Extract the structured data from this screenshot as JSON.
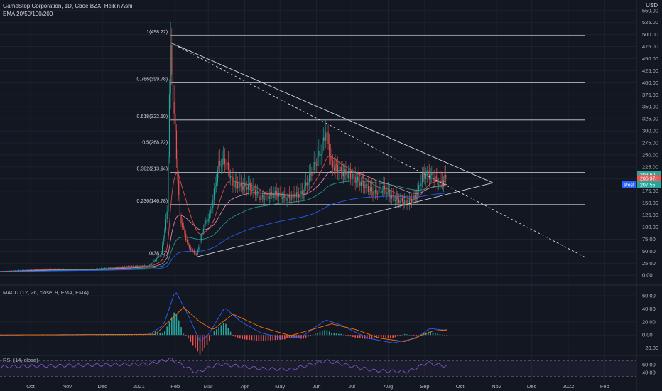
{
  "header": {
    "title": "GameStop Corporation, 1D, Cboe BZX, Heikin Ashi",
    "indicator": "EMA 20/50/100/200",
    "currency": "USD"
  },
  "colors": {
    "bg": "#131722",
    "grid": "#1e222d",
    "up": "#26a69a",
    "down": "#ef5350",
    "fib": "#d1d4dc",
    "ema20": "#ef5350",
    "ema50": "#f48fb1",
    "ema100": "#26a69a",
    "ema200": "#2962ff",
    "macd": "#2962ff",
    "signal": "#ff6d00",
    "rsi": "#7e57c2"
  },
  "chart_data": [
    {
      "type": "candlestick",
      "name_label": "GameStop Corporation, 1D, Cboe BZX, Heikin Ashi",
      "y_ticks": [
        0,
        25,
        50,
        75,
        100,
        125,
        150,
        175,
        200,
        225,
        250,
        275,
        300,
        325,
        350,
        375,
        400,
        425,
        450,
        475,
        500,
        525,
        550
      ],
      "y_tick_labels": [
        "0.00",
        "25.00",
        "50.00",
        "75.00",
        "100.00",
        "125.00",
        "150.00",
        "175.00",
        "200.00",
        "225.00",
        "250.00",
        "275.00",
        "300.00",
        "325.00",
        "350.00",
        "375.00",
        "400.00",
        "425.00",
        "450.00",
        "475.00",
        "500.00",
        "525.00",
        "550.00"
      ],
      "ylim": [
        -10,
        560
      ],
      "x_axis": {
        "start": "2020-09-05",
        "end": "2022-02-28",
        "ticks": [
          {
            "date": "2020-10-01",
            "label": "Oct"
          },
          {
            "date": "2020-11-01",
            "label": "Nov"
          },
          {
            "date": "2020-12-01",
            "label": "Dec"
          },
          {
            "date": "2021-01-01",
            "label": "2021"
          },
          {
            "date": "2021-02-01",
            "label": "Feb"
          },
          {
            "date": "2021-03-01",
            "label": "Mar"
          },
          {
            "date": "2021-04-01",
            "label": "Apr"
          },
          {
            "date": "2021-05-01",
            "label": "May"
          },
          {
            "date": "2021-06-01",
            "label": "Jun"
          },
          {
            "date": "2021-07-01",
            "label": "Jul"
          },
          {
            "date": "2021-08-01",
            "label": "Aug"
          },
          {
            "date": "2021-09-01",
            "label": "Sep"
          },
          {
            "date": "2021-10-01",
            "label": "Oct"
          },
          {
            "date": "2021-11-01",
            "label": "Nov"
          },
          {
            "date": "2021-12-01",
            "label": "Dec"
          },
          {
            "date": "2022-01-01",
            "label": "2022"
          },
          {
            "date": "2022-02-01",
            "label": "Feb"
          }
        ]
      },
      "price_path": [
        {
          "date": "2020-09-05",
          "value": 8
        },
        {
          "date": "2020-10-15",
          "value": 13
        },
        {
          "date": "2020-11-20",
          "value": 12
        },
        {
          "date": "2020-12-20",
          "value": 18
        },
        {
          "date": "2021-01-10",
          "value": 20
        },
        {
          "date": "2021-01-20",
          "value": 45
        },
        {
          "date": "2021-01-25",
          "value": 130
        },
        {
          "date": "2021-01-27",
          "value": 380
        },
        {
          "date": "2021-01-28",
          "value": 460
        },
        {
          "date": "2021-02-01",
          "value": 290
        },
        {
          "date": "2021-02-05",
          "value": 120
        },
        {
          "date": "2021-02-12",
          "value": 60
        },
        {
          "date": "2021-02-19",
          "value": 42
        },
        {
          "date": "2021-02-25",
          "value": 100
        },
        {
          "date": "2021-03-03",
          "value": 130
        },
        {
          "date": "2021-03-10",
          "value": 230
        },
        {
          "date": "2021-03-15",
          "value": 240
        },
        {
          "date": "2021-03-22",
          "value": 190
        },
        {
          "date": "2021-03-29",
          "value": 185
        },
        {
          "date": "2021-04-05",
          "value": 185
        },
        {
          "date": "2021-04-15",
          "value": 160
        },
        {
          "date": "2021-04-28",
          "value": 170
        },
        {
          "date": "2021-05-05",
          "value": 160
        },
        {
          "date": "2021-05-20",
          "value": 170
        },
        {
          "date": "2021-05-28",
          "value": 215
        },
        {
          "date": "2021-06-05",
          "value": 260
        },
        {
          "date": "2021-06-09",
          "value": 300
        },
        {
          "date": "2021-06-14",
          "value": 230
        },
        {
          "date": "2021-06-22",
          "value": 215
        },
        {
          "date": "2021-07-01",
          "value": 205
        },
        {
          "date": "2021-07-10",
          "value": 190
        },
        {
          "date": "2021-07-20",
          "value": 170
        },
        {
          "date": "2021-07-28",
          "value": 180
        },
        {
          "date": "2021-08-05",
          "value": 160
        },
        {
          "date": "2021-08-18",
          "value": 150
        },
        {
          "date": "2021-08-25",
          "value": 165
        },
        {
          "date": "2021-08-30",
          "value": 205
        },
        {
          "date": "2021-09-03",
          "value": 210
        },
        {
          "date": "2021-09-08",
          "value": 205
        },
        {
          "date": "2021-09-14",
          "value": 190
        },
        {
          "date": "2021-09-20",
          "value": 206
        }
      ],
      "fibonacci": [
        {
          "level": "1",
          "price": 498.22,
          "label": "1(498.22)"
        },
        {
          "level": "0.786",
          "price": 399.78,
          "label": "0.786(399.78)"
        },
        {
          "level": "0.618",
          "price": 322.5,
          "label": "0.618(322.50)"
        },
        {
          "level": "0.5",
          "price": 268.22,
          "label": "0.5(268.22)"
        },
        {
          "level": "0.382",
          "price": 213.94,
          "label": "0.382(213.94)"
        },
        {
          "level": "0.236",
          "price": 146.78,
          "label": "0.236(146.78)"
        },
        {
          "level": "0",
          "price": 38.22,
          "label": "0(38.22)"
        }
      ],
      "fib_range": {
        "start": "2021-01-28",
        "end": "2022-01-15"
      },
      "trendlines": [
        {
          "from": {
            "date": "2021-01-28",
            "value": 483
          },
          "to": {
            "date": "2021-10-29",
            "value": 192
          },
          "style": "solid"
        },
        {
          "from": {
            "date": "2021-02-19",
            "value": 38
          },
          "to": {
            "date": "2021-10-29",
            "value": 192
          },
          "style": "solid"
        },
        {
          "from": {
            "date": "2021-01-28",
            "value": 483
          },
          "to": {
            "date": "2022-01-15",
            "value": 38
          },
          "style": "dashed"
        }
      ],
      "price_labels": [
        {
          "label": "208.60",
          "value": 208.6,
          "color": "#26a69a"
        },
        {
          "label": "206.37",
          "value": 201.0,
          "color": "#ef5350"
        },
        {
          "label": "207.55",
          "value": 188.0,
          "color": "#26a69a",
          "tag": "Post"
        }
      ]
    },
    {
      "type": "macd",
      "label": "MACD (12, 26, close, 9, EMA, EMA)",
      "y_ticks": [
        -20,
        0,
        20,
        40,
        60
      ],
      "y_tick_labels": [
        "−20.00",
        "0.00",
        "20.00",
        "40.00",
        "60.00"
      ],
      "ylim": [
        -28,
        72
      ],
      "macd_path": [
        {
          "date": "2020-09-05",
          "value": 0
        },
        {
          "date": "2021-01-10",
          "value": 1
        },
        {
          "date": "2021-01-22",
          "value": 15
        },
        {
          "date": "2021-02-01",
          "value": 68
        },
        {
          "date": "2021-02-12",
          "value": 30
        },
        {
          "date": "2021-02-22",
          "value": -10
        },
        {
          "date": "2021-03-01",
          "value": 0
        },
        {
          "date": "2021-03-15",
          "value": 42
        },
        {
          "date": "2021-03-29",
          "value": 20
        },
        {
          "date": "2021-04-15",
          "value": 3
        },
        {
          "date": "2021-05-05",
          "value": -5
        },
        {
          "date": "2021-05-20",
          "value": -2
        },
        {
          "date": "2021-06-09",
          "value": 23
        },
        {
          "date": "2021-06-22",
          "value": 15
        },
        {
          "date": "2021-07-15",
          "value": -5
        },
        {
          "date": "2021-08-05",
          "value": -12
        },
        {
          "date": "2021-08-25",
          "value": -5
        },
        {
          "date": "2021-09-05",
          "value": 10
        },
        {
          "date": "2021-09-20",
          "value": 7
        }
      ],
      "signal_path": [
        {
          "date": "2020-09-05",
          "value": 0
        },
        {
          "date": "2021-01-15",
          "value": 1
        },
        {
          "date": "2021-02-08",
          "value": 42
        },
        {
          "date": "2021-02-22",
          "value": 20
        },
        {
          "date": "2021-03-05",
          "value": 8
        },
        {
          "date": "2021-03-22",
          "value": 32
        },
        {
          "date": "2021-04-15",
          "value": 12
        },
        {
          "date": "2021-05-10",
          "value": -1
        },
        {
          "date": "2021-06-14",
          "value": 17
        },
        {
          "date": "2021-07-05",
          "value": 8
        },
        {
          "date": "2021-07-25",
          "value": -5
        },
        {
          "date": "2021-08-15",
          "value": -10
        },
        {
          "date": "2021-09-08",
          "value": 6
        },
        {
          "date": "2021-09-20",
          "value": 8
        }
      ]
    },
    {
      "type": "rsi",
      "label": "RSI (14, close)",
      "y_ticks": [
        40,
        60
      ],
      "y_tick_labels": [
        "40.00",
        "60.00"
      ],
      "ylim": [
        20,
        80
      ],
      "bands": [
        30,
        70
      ],
      "rsi_path": [
        {
          "date": "2020-09-05",
          "value": 55
        },
        {
          "date": "2020-11-01",
          "value": 58
        },
        {
          "date": "2021-01-10",
          "value": 62
        },
        {
          "date": "2021-01-28",
          "value": 75
        },
        {
          "date": "2021-02-19",
          "value": 40
        },
        {
          "date": "2021-03-10",
          "value": 62
        },
        {
          "date": "2021-04-15",
          "value": 50
        },
        {
          "date": "2021-05-10",
          "value": 48
        },
        {
          "date": "2021-06-09",
          "value": 70
        },
        {
          "date": "2021-07-20",
          "value": 45
        },
        {
          "date": "2021-08-18",
          "value": 42
        },
        {
          "date": "2021-09-03",
          "value": 65
        },
        {
          "date": "2021-09-20",
          "value": 56
        }
      ]
    }
  ]
}
